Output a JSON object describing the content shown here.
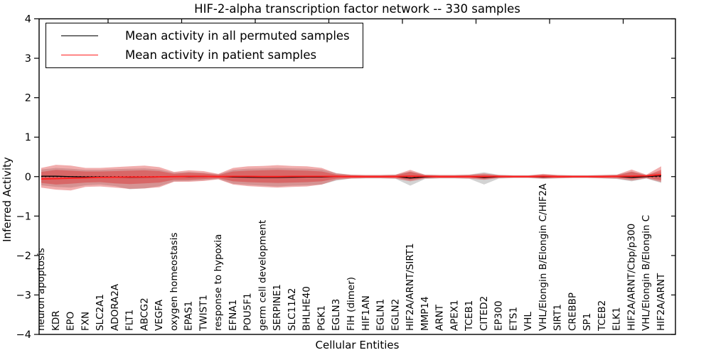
{
  "chart": {
    "title": "HIF-2-alpha transcription factor network -- 330 samples",
    "xlabel": "Cellular Entities",
    "ylabel": "Inferred Activity",
    "legend": {
      "position": "upper left",
      "items": [
        {
          "label": "Mean activity in all permuted samples",
          "color": "#000000"
        },
        {
          "label": "Mean activity in patient samples",
          "color": "#ff1f1f"
        }
      ]
    }
  },
  "chart_data": {
    "type": "line",
    "title": "HIF-2-alpha transcription factor network -- 330 samples",
    "xlabel": "Cellular Entities",
    "ylabel": "Inferred Activity",
    "ylim": [
      -4,
      4
    ],
    "yticks": [
      -4,
      -3,
      -2,
      -1,
      0,
      1,
      2,
      3,
      4
    ],
    "grid": false,
    "legend_position": "upper left",
    "categories": [
      "neuron apoptosis",
      "KDR",
      "EPO",
      "FXN",
      "SLC2A1",
      "ADORA2A",
      "FLT1",
      "ABCG2",
      "VEGFA",
      "oxygen homeostasis",
      "EPAS1",
      "TWIST1",
      "response to hypoxia",
      "EFNA1",
      "POU5F1",
      "germ cell development",
      "SERPINE1",
      "SLC11A2",
      "BHLHE40",
      "PGK1",
      "EGLN3",
      "FIH (dimer)",
      "HIF1AN",
      "EGLN1",
      "EGLN2",
      "HIF2A/ARNT/SIRT1",
      "MMP14",
      "ARNT",
      "APEX1",
      "TCEB1",
      "CITED2",
      "EP300",
      "ETS1",
      "VHL",
      "VHL/Elongin B/Elongin C/HIF2A",
      "SIRT1",
      "CREBBP",
      "SP1",
      "TCEB2",
      "ELK1",
      "HIF2A/ARNT/Cbp/p300",
      "VHL/Elongin B/Elongin C",
      "HIF2A/ARNT"
    ],
    "series": [
      {
        "name": "Mean activity in all permuted samples",
        "color": "#000000",
        "style": "solid",
        "width": 1.3,
        "values": [
          0.01,
          0.01,
          0.0,
          -0.01,
          -0.01,
          -0.015,
          -0.02,
          -0.015,
          -0.01,
          0.0,
          -0.005,
          0.0,
          0.0,
          -0.01,
          -0.015,
          -0.02,
          -0.02,
          -0.015,
          -0.01,
          -0.01,
          0.0,
          0.0,
          0.0,
          0.0,
          0.0,
          -0.035,
          -0.01,
          0.0,
          0.0,
          0.0,
          -0.025,
          -0.005,
          0.0,
          0.0,
          -0.01,
          0.0,
          0.0,
          0.0,
          0.0,
          0.0,
          -0.02,
          0.0,
          0.02
        ]
      },
      {
        "name": "Mean activity in patient samples",
        "color": "#ff1f1f",
        "style": "solid",
        "width": 1.9,
        "values": [
          -0.06,
          -0.05,
          -0.04,
          -0.03,
          -0.02,
          -0.015,
          -0.01,
          -0.01,
          -0.005,
          0.0,
          0.005,
          0.005,
          0.0,
          0.005,
          0.005,
          0.0,
          0.0,
          0.005,
          0.005,
          0.005,
          0.005,
          0.0,
          0.0,
          0.0,
          0.0,
          0.01,
          0.005,
          0.0,
          0.0,
          0.0,
          0.0,
          0.005,
          0.0,
          0.0,
          0.005,
          0.0,
          0.0,
          0.0,
          0.0,
          0.005,
          0.01,
          0.02,
          0.05
        ]
      },
      {
        "name": "zero reference",
        "color": "#000000",
        "style": "dotted",
        "width": 1.3,
        "constant": 0
      }
    ],
    "bands": [
      {
        "name": "permuted samples spread",
        "color": "#828282",
        "opacity": 0.35,
        "upper": [
          0.18,
          0.22,
          0.2,
          0.17,
          0.17,
          0.19,
          0.2,
          0.21,
          0.18,
          0.1,
          0.12,
          0.1,
          0.06,
          0.17,
          0.2,
          0.21,
          0.22,
          0.21,
          0.2,
          0.18,
          0.09,
          0.045,
          0.04,
          0.04,
          0.05,
          0.13,
          0.05,
          0.04,
          0.04,
          0.05,
          0.11,
          0.045,
          0.035,
          0.035,
          0.05,
          0.04,
          0.035,
          0.035,
          0.04,
          0.05,
          0.13,
          0.045,
          0.12
        ],
        "lower": [
          -0.22,
          -0.26,
          -0.28,
          -0.22,
          -0.2,
          -0.24,
          -0.32,
          -0.3,
          -0.24,
          -0.12,
          -0.11,
          -0.09,
          -0.06,
          -0.18,
          -0.21,
          -0.23,
          -0.25,
          -0.23,
          -0.22,
          -0.2,
          -0.1,
          -0.05,
          -0.045,
          -0.045,
          -0.055,
          -0.23,
          -0.06,
          -0.045,
          -0.045,
          -0.055,
          -0.2,
          -0.05,
          -0.035,
          -0.035,
          -0.06,
          -0.045,
          -0.035,
          -0.035,
          -0.045,
          -0.06,
          -0.12,
          -0.05,
          -0.16
        ]
      },
      {
        "name": "patient samples spread outer",
        "color": "#dc3232",
        "opacity": 0.4,
        "upper": [
          0.22,
          0.3,
          0.28,
          0.22,
          0.22,
          0.24,
          0.26,
          0.28,
          0.24,
          0.12,
          0.16,
          0.14,
          0.07,
          0.22,
          0.26,
          0.27,
          0.29,
          0.27,
          0.26,
          0.22,
          0.08,
          0.05,
          0.04,
          0.04,
          0.05,
          0.17,
          0.05,
          0.04,
          0.04,
          0.05,
          0.08,
          0.04,
          0.03,
          0.03,
          0.07,
          0.04,
          0.03,
          0.03,
          0.04,
          0.05,
          0.18,
          0.05,
          0.26
        ],
        "lower": [
          -0.28,
          -0.33,
          -0.35,
          -0.26,
          -0.25,
          -0.28,
          -0.31,
          -0.3,
          -0.27,
          -0.13,
          -0.13,
          -0.11,
          -0.07,
          -0.2,
          -0.24,
          -0.26,
          -0.28,
          -0.26,
          -0.25,
          -0.2,
          -0.08,
          -0.05,
          -0.04,
          -0.04,
          -0.05,
          -0.12,
          -0.05,
          -0.04,
          -0.04,
          -0.05,
          -0.08,
          -0.04,
          -0.03,
          -0.03,
          -0.05,
          -0.04,
          -0.03,
          -0.03,
          -0.04,
          -0.05,
          -0.1,
          -0.04,
          -0.14
        ]
      },
      {
        "name": "patient samples spread inner",
        "color": "#dc3232",
        "opacity": 0.45,
        "upper": [
          0.12,
          0.17,
          0.15,
          0.13,
          0.13,
          0.14,
          0.15,
          0.16,
          0.14,
          0.07,
          0.1,
          0.08,
          0.04,
          0.13,
          0.15,
          0.16,
          0.17,
          0.16,
          0.15,
          0.13,
          0.05,
          0.03,
          0.025,
          0.025,
          0.03,
          0.12,
          0.03,
          0.025,
          0.025,
          0.03,
          0.05,
          0.025,
          0.02,
          0.02,
          0.045,
          0.025,
          0.02,
          0.02,
          0.025,
          0.03,
          0.12,
          0.03,
          0.17
        ],
        "lower": [
          -0.16,
          -0.2,
          -0.18,
          -0.15,
          -0.14,
          -0.17,
          -0.19,
          -0.17,
          -0.15,
          -0.08,
          -0.08,
          -0.06,
          -0.04,
          -0.12,
          -0.14,
          -0.15,
          -0.16,
          -0.15,
          -0.14,
          -0.12,
          -0.05,
          -0.03,
          -0.025,
          -0.025,
          -0.03,
          -0.08,
          -0.03,
          -0.025,
          -0.025,
          -0.03,
          -0.05,
          -0.025,
          -0.02,
          -0.02,
          -0.03,
          -0.025,
          -0.02,
          -0.02,
          -0.025,
          -0.03,
          -0.06,
          -0.025,
          -0.09
        ]
      }
    ]
  }
}
